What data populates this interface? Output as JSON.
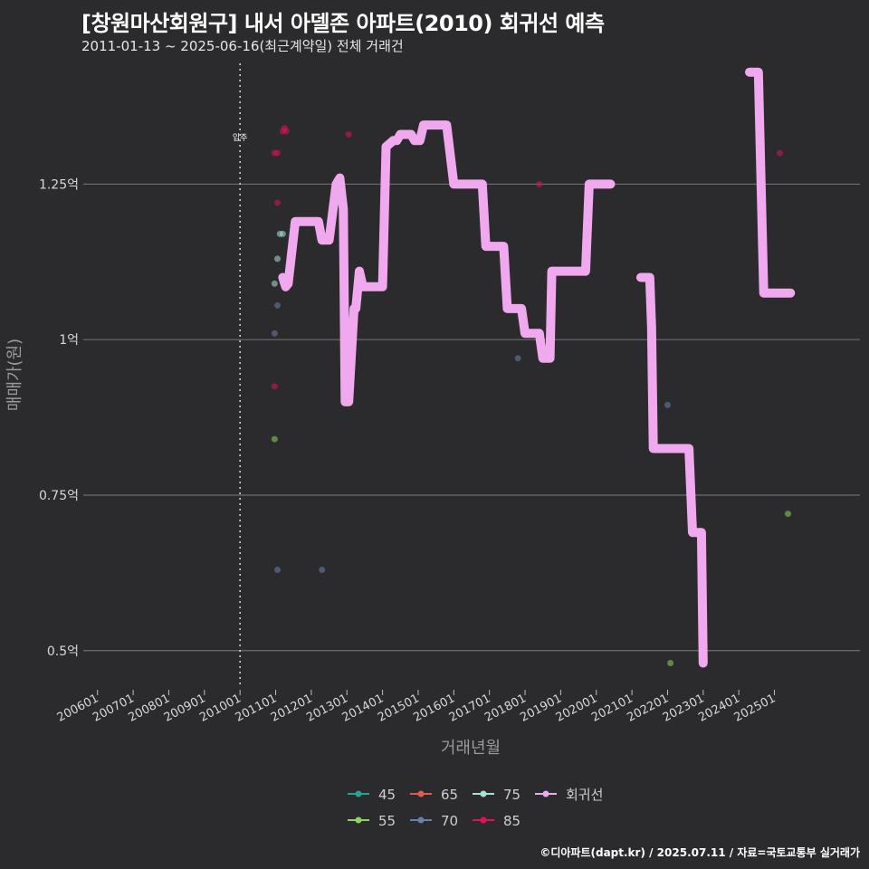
{
  "title": "[창원마산회원구] 내서 아델존 아파트(2010) 회귀선 예측",
  "subtitle": "2011-01-13 ~ 2025-06-16(최근계약일) 전체 거래건",
  "credit": "©디아파트(dapt.kr) / 2025.07.11 / 자료=국토교통부 실거래가",
  "chart_data": {
    "type": "scatter",
    "xlabel": "거래년월",
    "ylabel": "매매가(원)",
    "x_range": [
      2005.6,
      2027.4
    ],
    "ylim": [
      0.44,
      1.45
    ],
    "y_ticks": [
      {
        "v": 0.5,
        "label": "0.5억"
      },
      {
        "v": 0.75,
        "label": "0.75억"
      },
      {
        "v": 1.0,
        "label": "1억"
      },
      {
        "v": 1.25,
        "label": "1.25억"
      }
    ],
    "x_ticks": [
      {
        "v": 2006.0,
        "label": "200601"
      },
      {
        "v": 2007.0,
        "label": "200701"
      },
      {
        "v": 2008.0,
        "label": "200801"
      },
      {
        "v": 2009.0,
        "label": "200901"
      },
      {
        "v": 2010.0,
        "label": "201001"
      },
      {
        "v": 2011.0,
        "label": "201101"
      },
      {
        "v": 2012.0,
        "label": "201201"
      },
      {
        "v": 2013.0,
        "label": "201301"
      },
      {
        "v": 2014.0,
        "label": "201401"
      },
      {
        "v": 2015.0,
        "label": "201501"
      },
      {
        "v": 2016.0,
        "label": "201601"
      },
      {
        "v": 2017.0,
        "label": "201701"
      },
      {
        "v": 2018.0,
        "label": "201801"
      },
      {
        "v": 2019.0,
        "label": "201901"
      },
      {
        "v": 2020.0,
        "label": "202001"
      },
      {
        "v": 2021.0,
        "label": "202101"
      },
      {
        "v": 2022.0,
        "label": "202201"
      },
      {
        "v": 2023.0,
        "label": "202301"
      },
      {
        "v": 2024.0,
        "label": "202401"
      },
      {
        "v": 2025.0,
        "label": "202501"
      }
    ],
    "move_in": {
      "x": 2010.0,
      "label": "입주"
    },
    "series": [
      {
        "name": "45",
        "color": "#2aa198",
        "points": []
      },
      {
        "name": "55",
        "color": "#8bd463",
        "points": [
          [
            2010.97,
            0.84
          ],
          [
            2022.08,
            0.48
          ],
          [
            2025.38,
            0.72
          ]
        ]
      },
      {
        "name": "65",
        "color": "#e05a50",
        "points": []
      },
      {
        "name": "70",
        "color": "#6b7fae",
        "points": [
          [
            2010.97,
            1.01
          ],
          [
            2011.05,
            1.055
          ],
          [
            2017.8,
            0.97
          ],
          [
            2022.0,
            0.895
          ],
          [
            2011.05,
            0.63
          ],
          [
            2012.3,
            0.63
          ]
        ]
      },
      {
        "name": "75",
        "color": "#a8e0d8",
        "points": [
          [
            2010.97,
            1.09
          ],
          [
            2011.05,
            1.13
          ],
          [
            2011.12,
            1.17
          ],
          [
            2011.2,
            1.17
          ]
        ]
      },
      {
        "name": "85",
        "color": "#e0105a",
        "points": [
          [
            2010.97,
            0.925
          ],
          [
            2011.05,
            1.22
          ],
          [
            2010.97,
            1.3
          ],
          [
            2011.05,
            1.3
          ],
          [
            2011.2,
            1.335
          ],
          [
            2011.25,
            1.34
          ],
          [
            2011.3,
            1.335
          ],
          [
            2013.05,
            1.33
          ],
          [
            2018.4,
            1.25
          ],
          [
            2021.4,
            1.1
          ],
          [
            2025.15,
            1.3
          ]
        ]
      }
    ],
    "regression": {
      "name": "회귀선",
      "color": "#f0a8ee",
      "segments": [
        [
          [
            2011.2,
            1.1
          ],
          [
            2011.28,
            1.085
          ],
          [
            2011.35,
            1.09
          ],
          [
            2011.55,
            1.19
          ],
          [
            2012.2,
            1.19
          ],
          [
            2012.3,
            1.16
          ],
          [
            2012.5,
            1.16
          ],
          [
            2012.7,
            1.25
          ],
          [
            2012.8,
            1.26
          ],
          [
            2012.9,
            1.21
          ],
          [
            2012.95,
            0.9
          ],
          [
            2013.05,
            0.9
          ],
          [
            2013.2,
            1.05
          ],
          [
            2013.25,
            1.05
          ],
          [
            2013.35,
            1.11
          ],
          [
            2013.45,
            1.085
          ],
          [
            2014.0,
            1.085
          ],
          [
            2014.1,
            1.31
          ],
          [
            2014.3,
            1.32
          ],
          [
            2014.4,
            1.32
          ],
          [
            2014.5,
            1.33
          ],
          [
            2014.8,
            1.33
          ],
          [
            2014.9,
            1.32
          ],
          [
            2015.05,
            1.32
          ],
          [
            2015.15,
            1.345
          ],
          [
            2015.8,
            1.345
          ],
          [
            2016.0,
            1.25
          ],
          [
            2016.8,
            1.25
          ],
          [
            2016.9,
            1.15
          ],
          [
            2017.4,
            1.15
          ],
          [
            2017.5,
            1.05
          ],
          [
            2017.9,
            1.05
          ],
          [
            2018.0,
            1.01
          ],
          [
            2018.4,
            1.01
          ],
          [
            2018.5,
            0.97
          ],
          [
            2018.7,
            0.97
          ],
          [
            2018.75,
            1.11
          ],
          [
            2019.7,
            1.11
          ],
          [
            2019.8,
            1.25
          ],
          [
            2020.4,
            1.25
          ]
        ],
        [
          [
            2021.25,
            1.1
          ],
          [
            2021.5,
            1.1
          ],
          [
            2021.55,
            1.02
          ],
          [
            2021.6,
            0.825
          ],
          [
            2022.6,
            0.825
          ],
          [
            2022.7,
            0.69
          ],
          [
            2022.95,
            0.69
          ],
          [
            2023.0,
            0.48
          ]
        ],
        [
          [
            2024.3,
            1.43
          ],
          [
            2024.55,
            1.43
          ],
          [
            2024.7,
            1.075
          ],
          [
            2025.45,
            1.075
          ]
        ]
      ]
    }
  }
}
